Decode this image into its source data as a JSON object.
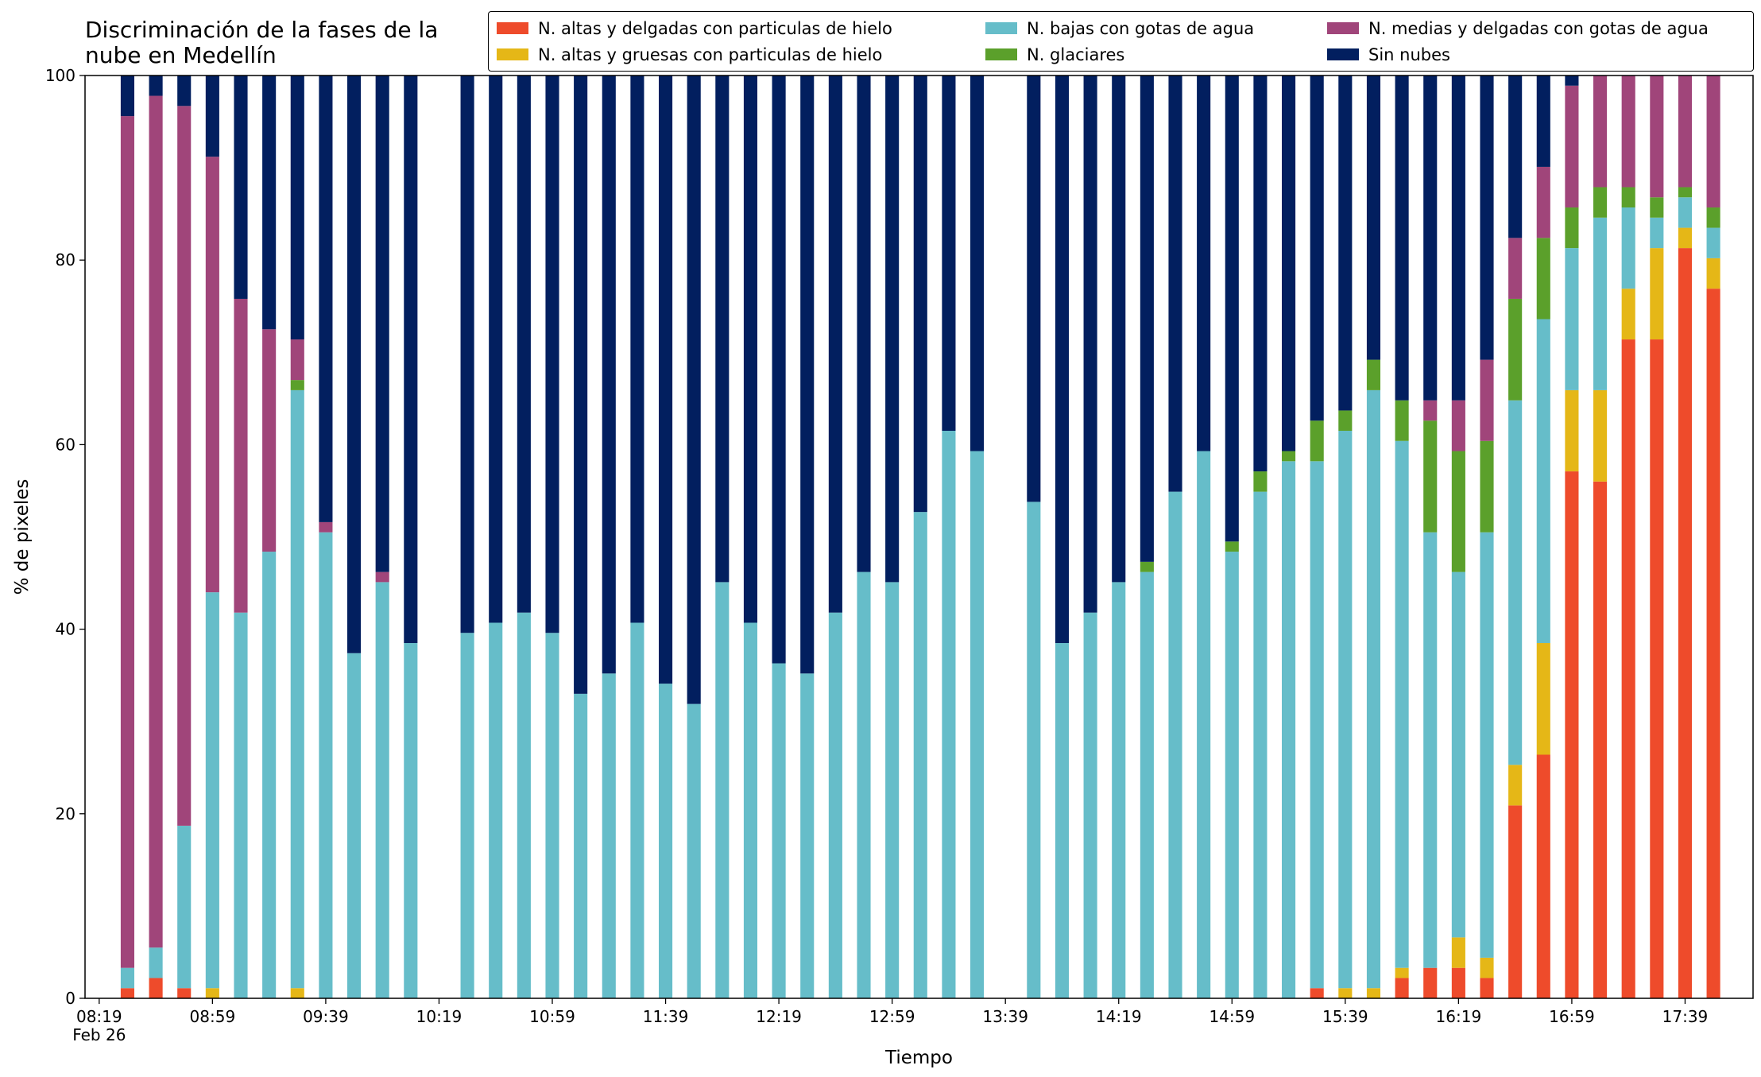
{
  "chart_data": {
    "type": "stacked_bar",
    "title": "Discriminación de la fases de la\nnube en Medellín",
    "xlabel": "Tiempo",
    "ylabel": "% de pixeles",
    "date_label": "Feb 26",
    "x": [
      "08:29",
      "08:39",
      "08:49",
      "08:59",
      "09:09",
      "09:19",
      "09:29",
      "09:39",
      "09:49",
      "09:59",
      "10:09",
      "10:29",
      "10:39",
      "10:49",
      "10:59",
      "11:09",
      "11:19",
      "11:29",
      "11:39",
      "11:49",
      "11:59",
      "12:09",
      "12:19",
      "12:29",
      "12:39",
      "12:49",
      "12:59",
      "13:09",
      "13:19",
      "13:29",
      "13:49",
      "13:59",
      "14:09",
      "14:19",
      "14:29",
      "14:39",
      "14:49",
      "14:59",
      "15:09",
      "15:19",
      "15:29",
      "15:39",
      "15:49",
      "15:59",
      "16:09",
      "16:19",
      "16:29",
      "16:39",
      "16:49",
      "16:59",
      "17:09",
      "17:19",
      "17:29",
      "17:39",
      "17:49"
    ],
    "xlim": [
      "08:14",
      "18:03"
    ],
    "xticks": [
      "08:19",
      "08:59",
      "09:39",
      "10:19",
      "10:59",
      "11:39",
      "12:19",
      "12:59",
      "13:39",
      "14:19",
      "14:59",
      "15:39",
      "16:19",
      "16:59",
      "17:39"
    ],
    "ylim": [
      0,
      100
    ],
    "yticks": [
      0,
      20,
      40,
      60,
      80,
      100
    ],
    "legend": "upper right",
    "series": [
      {
        "name": "N. altas y delgadas con particulas de hielo",
        "color": "#ee4b2b",
        "values": [
          1.1,
          2.2,
          1.1,
          0,
          0,
          0,
          0,
          0,
          0,
          0,
          0,
          0,
          0,
          0,
          0,
          0,
          0,
          0,
          0,
          0,
          0,
          0,
          0,
          0,
          0,
          0,
          0,
          0,
          0,
          0,
          0,
          0,
          0,
          0,
          0,
          0,
          0,
          0,
          0,
          0,
          1.1,
          0,
          0,
          2.2,
          3.3,
          3.3,
          2.2,
          20.9,
          26.4,
          57.1,
          56.0,
          71.4,
          71.4,
          81.3,
          76.9
        ]
      },
      {
        "name": "N. altas y gruesas con particulas de hielo",
        "color": "#e5b717",
        "values": [
          0,
          0,
          0,
          1.1,
          0,
          0,
          1.1,
          0,
          0,
          0,
          0,
          0,
          0,
          0,
          0,
          0,
          0,
          0,
          0,
          0,
          0,
          0,
          0,
          0,
          0,
          0,
          0,
          0,
          0,
          0,
          0,
          0,
          0,
          0,
          0,
          0,
          0,
          0,
          0,
          0,
          0,
          1.1,
          1.1,
          1.1,
          0,
          3.3,
          2.2,
          4.4,
          12.1,
          8.8,
          9.9,
          5.5,
          9.9,
          2.2,
          3.3
        ]
      },
      {
        "name": "N. bajas con gotas de agua",
        "color": "#66bdc9",
        "values": [
          2.2,
          3.3,
          17.6,
          42.9,
          41.8,
          48.4,
          64.8,
          50.5,
          37.4,
          45.1,
          38.5,
          39.6,
          40.7,
          41.8,
          39.6,
          33.0,
          35.2,
          40.7,
          34.1,
          31.9,
          45.1,
          40.7,
          36.3,
          35.2,
          41.8,
          46.2,
          45.1,
          52.7,
          61.5,
          59.3,
          53.8,
          38.5,
          41.8,
          45.1,
          46.2,
          54.9,
          59.3,
          48.4,
          54.9,
          58.2,
          57.1,
          60.4,
          64.8,
          57.1,
          47.2,
          39.6,
          46.1,
          39.5,
          35.1,
          15.4,
          18.7,
          8.8,
          3.3,
          3.3,
          3.3
        ]
      },
      {
        "name": "N. glaciares",
        "color": "#5ba02b",
        "values": [
          0,
          0,
          0,
          0,
          0,
          0,
          1.1,
          0,
          0,
          0,
          0,
          0,
          0,
          0,
          0,
          0,
          0,
          0,
          0,
          0,
          0,
          0,
          0,
          0,
          0,
          0,
          0,
          0,
          0,
          0,
          0,
          0,
          0,
          0,
          1.1,
          0,
          0,
          1.1,
          2.2,
          1.1,
          4.4,
          2.2,
          3.3,
          4.4,
          12.1,
          13.1,
          9.9,
          11.0,
          8.8,
          4.4,
          3.3,
          2.2,
          2.2,
          1.1,
          2.2
        ]
      },
      {
        "name": "N. medias y delgadas con gotas de agua",
        "color": "#a0457a",
        "values": [
          92.3,
          92.3,
          78.0,
          47.2,
          34.0,
          24.1,
          4.4,
          1.1,
          0,
          1.1,
          0,
          0,
          0,
          0,
          0,
          0,
          0,
          0,
          0,
          0,
          0,
          0,
          0,
          0,
          0,
          0,
          0,
          0,
          0,
          0,
          0,
          0,
          0,
          0,
          0,
          0,
          0,
          0,
          0,
          0,
          0,
          0,
          0,
          0,
          2.2,
          5.5,
          8.8,
          6.6,
          7.7,
          13.2,
          12.1,
          12.1,
          13.2,
          12.1,
          14.3
        ]
      },
      {
        "name": "Sin nubes",
        "color": "#021f5f",
        "values": [
          4.4,
          2.2,
          3.3,
          8.8,
          24.2,
          27.5,
          28.6,
          48.4,
          62.6,
          53.8,
          61.5,
          60.4,
          59.3,
          58.2,
          60.4,
          67.0,
          64.8,
          59.3,
          65.9,
          68.1,
          54.9,
          59.3,
          63.7,
          64.8,
          58.2,
          53.8,
          54.9,
          47.3,
          38.5,
          40.7,
          46.2,
          61.5,
          58.2,
          54.9,
          52.7,
          45.1,
          40.7,
          50.5,
          42.9,
          40.7,
          37.4,
          36.3,
          30.8,
          35.2,
          35.2,
          35.2,
          30.8,
          17.6,
          9.9,
          1.1,
          0,
          0,
          0,
          0,
          0
        ]
      }
    ]
  }
}
